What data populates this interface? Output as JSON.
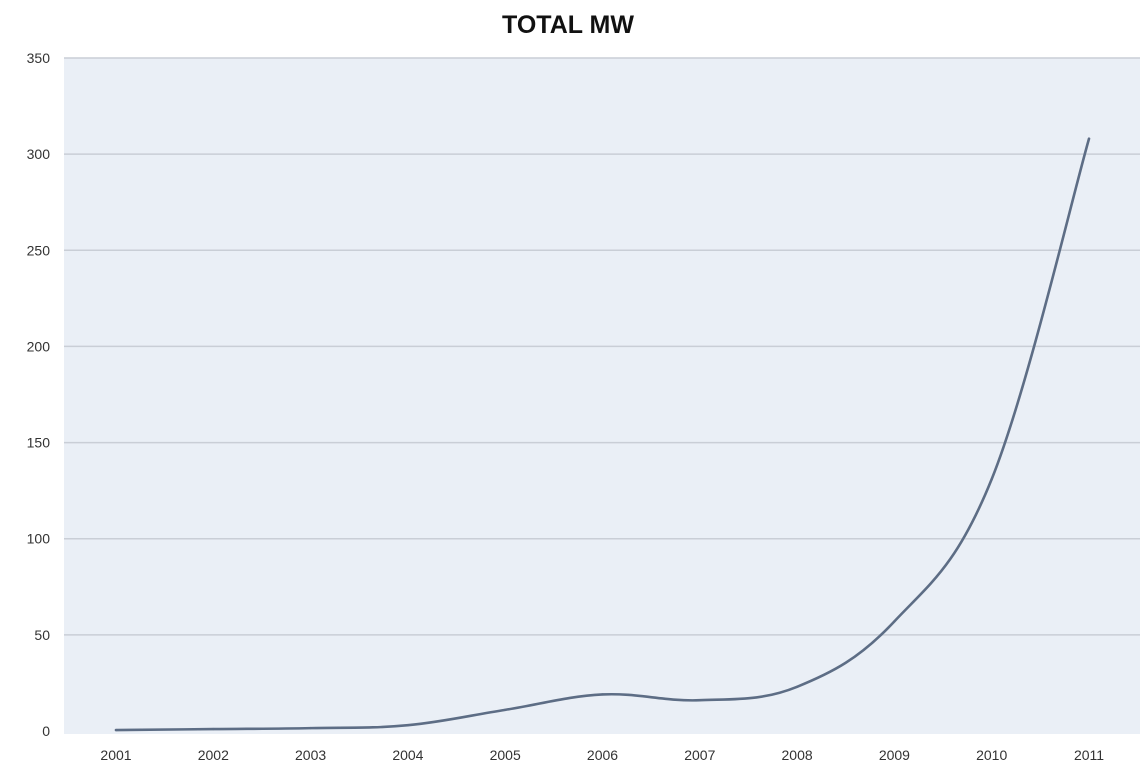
{
  "chart_data": {
    "type": "line",
    "title": "TOTAL MW",
    "xlabel": "",
    "ylabel": "",
    "categories": [
      "2001",
      "2002",
      "2003",
      "2004",
      "2005",
      "2006",
      "2007",
      "2008",
      "2009",
      "2010",
      "2011"
    ],
    "series": [
      {
        "values": [
          0.5,
          1,
          1.5,
          3,
          11,
          19,
          16,
          23,
          57,
          131,
          308
        ]
      }
    ],
    "ylim": [
      0,
      350
    ],
    "yticks": [
      "0",
      "50",
      "100",
      "150",
      "200",
      "250",
      "300",
      "350"
    ],
    "grid": true,
    "legend": "none",
    "colors": {
      "plot_background": "#eaeff6",
      "gridline": "#c9ced6",
      "line": "#5d6d85"
    }
  }
}
